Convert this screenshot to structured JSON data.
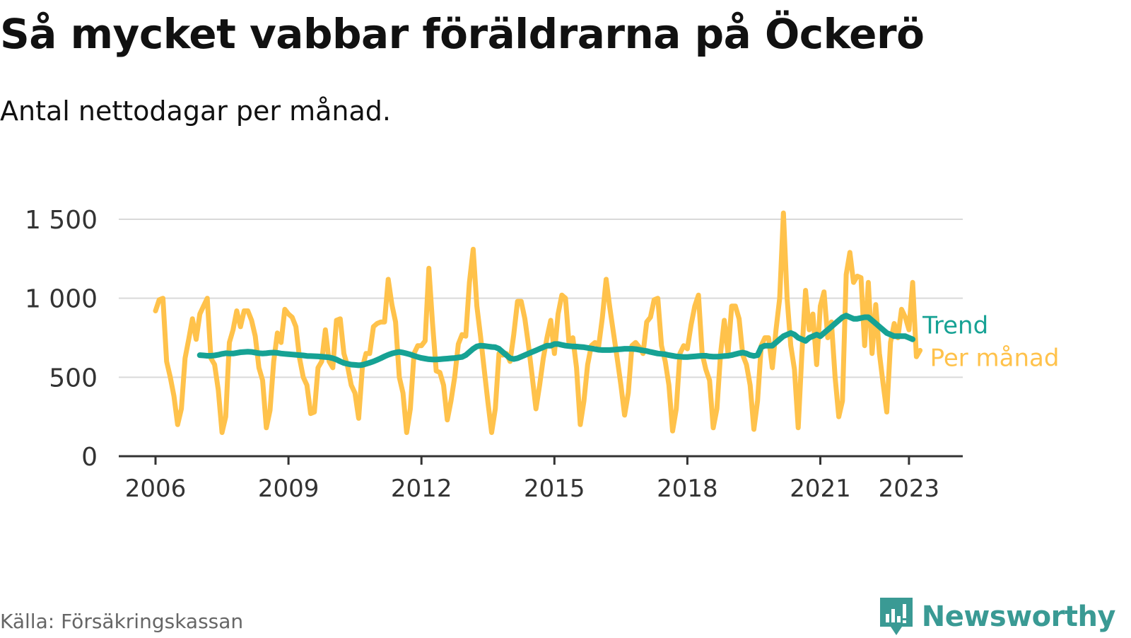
{
  "title": "Så mycket vabbar föräldrarna på Öckerö",
  "subtitle": "Antal nettodagar per månad.",
  "source": "Källa: Försäkringskassan",
  "brand": {
    "name": "Newsworthy",
    "logo_icon": "newsworthy-logo-icon"
  },
  "colors": {
    "per_manad": "#FFC24B",
    "trend": "#16A294",
    "grid": "#d9d9d9",
    "axis": "#333333"
  },
  "chart_data": {
    "type": "line",
    "title": "Så mycket vabbar föräldrarna på Öckerö",
    "subtitle": "Antal nettodagar per månad.",
    "xlabel": "",
    "ylabel": "",
    "x_range": [
      2005.5,
      2024.3
    ],
    "ylim": [
      0,
      1600
    ],
    "x_ticks": [
      2006,
      2009,
      2012,
      2015,
      2018,
      2021,
      2023
    ],
    "x_tick_labels": [
      "2006",
      "2009",
      "2012",
      "2015",
      "2018",
      "2021",
      "2023"
    ],
    "y_ticks": [
      0,
      500,
      1000,
      1500
    ],
    "y_tick_labels": [
      "0",
      "500",
      "1 000",
      "1 500"
    ],
    "grid": true,
    "legend": "labels at line ends (right)",
    "series": [
      {
        "name": "Per månad",
        "x_start": 2006.0,
        "step": "month",
        "values": [
          920,
          990,
          1000,
          600,
          500,
          380,
          200,
          300,
          620,
          740,
          870,
          740,
          900,
          950,
          1000,
          620,
          580,
          420,
          150,
          250,
          720,
          800,
          920,
          820,
          920,
          920,
          860,
          760,
          560,
          480,
          180,
          290,
          600,
          780,
          720,
          930,
          900,
          880,
          820,
          620,
          500,
          450,
          270,
          280,
          560,
          600,
          800,
          600,
          560,
          860,
          870,
          650,
          570,
          450,
          400,
          240,
          560,
          650,
          650,
          820,
          840,
          850,
          850,
          1120,
          960,
          850,
          500,
          400,
          150,
          300,
          650,
          700,
          700,
          730,
          1190,
          840,
          540,
          530,
          450,
          230,
          350,
          500,
          710,
          770,
          760,
          1100,
          1310,
          950,
          760,
          550,
          340,
          150,
          300,
          650,
          640,
          650,
          600,
          770,
          980,
          980,
          870,
          700,
          500,
          300,
          450,
          620,
          750,
          860,
          650,
          900,
          1020,
          1000,
          700,
          750,
          560,
          200,
          350,
          580,
          700,
          720,
          700,
          880,
          1120,
          940,
          780,
          620,
          450,
          260,
          400,
          700,
          720,
          690,
          650,
          850,
          880,
          990,
          1000,
          700,
          600,
          450,
          160,
          300,
          650,
          700,
          680,
          830,
          950,
          1020,
          650,
          550,
          480,
          180,
          300,
          650,
          860,
          650,
          950,
          950,
          870,
          640,
          580,
          450,
          170,
          350,
          700,
          750,
          750,
          560,
          800,
          1000,
          1540,
          1000,
          700,
          550,
          180,
          650,
          1050,
          800,
          900,
          580,
          950,
          1040,
          750,
          850,
          500,
          250,
          350,
          1150,
          1290,
          1100,
          1140,
          1130,
          700,
          1100,
          650,
          960,
          650,
          460,
          280,
          720,
          840,
          750,
          930,
          880,
          800,
          1100,
          630,
          670
        ]
      },
      {
        "name": "Trend",
        "x_start": 2007.0,
        "step": "month",
        "values": [
          640,
          638,
          636,
          636,
          638,
          642,
          648,
          652,
          650,
          650,
          654,
          658,
          660,
          662,
          660,
          656,
          652,
          650,
          652,
          655,
          656,
          654,
          650,
          648,
          646,
          644,
          642,
          640,
          638,
          635,
          634,
          633,
          632,
          630,
          628,
          626,
          620,
          612,
          600,
          590,
          585,
          580,
          578,
          576,
          578,
          585,
          592,
          600,
          610,
          620,
          632,
          642,
          650,
          656,
          660,
          656,
          650,
          644,
          636,
          628,
          622,
          618,
          614,
          612,
          612,
          614,
          616,
          618,
          620,
          622,
          625,
          628,
          640,
          660,
          680,
          695,
          700,
          698,
          695,
          692,
          690,
          680,
          660,
          640,
          620,
          615,
          620,
          630,
          640,
          650,
          660,
          670,
          680,
          690,
          700,
          700,
          710,
          710,
          705,
          700,
          697,
          695,
          694,
          692,
          690,
          686,
          682,
          678,
          674,
          672,
          672,
          672,
          674,
          676,
          678,
          680,
          680,
          680,
          678,
          674,
          670,
          666,
          660,
          655,
          650,
          648,
          645,
          640,
          636,
          632,
          630,
          628,
          628,
          630,
          632,
          634,
          636,
          636,
          632,
          630,
          630,
          632,
          634,
          636,
          640,
          646,
          652,
          656,
          650,
          640,
          635,
          640,
          690,
          700,
          700,
          700,
          720,
          740,
          760,
          770,
          780,
          770,
          750,
          740,
          730,
          750,
          760,
          770,
          760,
          780,
          800,
          820,
          840,
          860,
          880,
          890,
          880,
          870,
          870,
          875,
          880,
          880,
          860,
          840,
          820,
          800,
          780,
          770,
          760,
          760,
          760,
          760,
          750,
          740
        ]
      }
    ]
  }
}
